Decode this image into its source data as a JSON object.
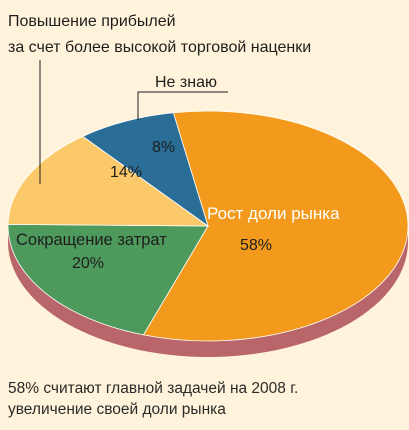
{
  "chart_data": {
    "type": "pie",
    "title": "",
    "slices": [
      {
        "label": "Рост доли рынка",
        "value": 58,
        "value_label": "58%",
        "color": "#F39A1D"
      },
      {
        "label": "Сокращение затрат",
        "value": 20,
        "value_label": "20%",
        "color": "#4E9A5C"
      },
      {
        "label": "Повышение прибылей за счет более высокой торговой наценки",
        "value": 14,
        "value_label": "14%",
        "color": "#FBC86A"
      },
      {
        "label": "Не знаю",
        "value": 8,
        "value_label": "8%",
        "color": "#2A6E97"
      }
    ],
    "callout_lines": [
      "Повышение прибылей",
      "за счет более высокой торговой наценки"
    ]
  },
  "caption": {
    "line1": "58% считают главной задачей на 2008 г.",
    "line2": "увеличение своей доли рынка"
  }
}
